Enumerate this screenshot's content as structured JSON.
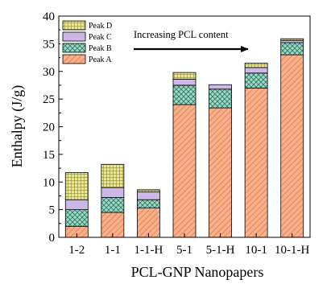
{
  "chart_data": {
    "type": "bar",
    "stacked": true,
    "title": "",
    "xlabel": "PCL-GNP Nanopapers",
    "ylabel": "Enthalpy (J/g)",
    "ylim": [
      0,
      40
    ],
    "yticks": [
      0,
      5,
      10,
      15,
      20,
      25,
      30,
      35,
      40
    ],
    "grid": false,
    "legend_position": "top-left",
    "annotation": "Increasing PCL content",
    "categories": [
      "1-2",
      "1-1",
      "1-1-H",
      "5-1",
      "5-1-H",
      "10-1",
      "10-1-H"
    ],
    "series": [
      {
        "name": "Peak A",
        "values": [
          2.0,
          4.5,
          5.3,
          24.0,
          23.4,
          27.0,
          33.0
        ],
        "color": "#f7b08a",
        "hatch": "#e0663a",
        "pattern": "diag"
      },
      {
        "name": "Peak B",
        "values": [
          3.0,
          2.7,
          1.5,
          3.5,
          3.4,
          2.7,
          2.2
        ],
        "color": "#9fd8c6",
        "hatch": "#2f7a62",
        "pattern": "cross"
      },
      {
        "name": "Peak C",
        "values": [
          1.8,
          1.8,
          1.4,
          1.1,
          0.8,
          1.0,
          0.4
        ],
        "color": "#cbb8e6",
        "hatch": "#8a70b8",
        "pattern": "none"
      },
      {
        "name": "Peak D",
        "values": [
          4.9,
          4.2,
          0.4,
          1.2,
          0.0,
          0.8,
          0.3
        ],
        "color": "#e8e6a6",
        "hatch": "#9f9a3a",
        "pattern": "grid"
      }
    ]
  }
}
